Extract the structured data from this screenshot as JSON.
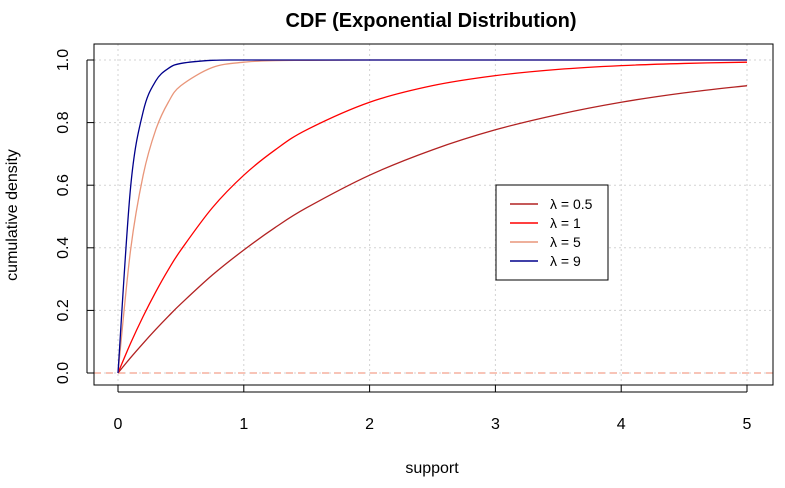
{
  "chart_data": {
    "type": "line",
    "title": "CDF (Exponential Distribution)",
    "xlabel": "support",
    "ylabel": "cumulative density",
    "xlim": [
      0,
      5
    ],
    "ylim": [
      0,
      1
    ],
    "x_ticks": [
      "0",
      "1",
      "2",
      "3",
      "4",
      "5"
    ],
    "y_ticks": [
      "0.0",
      "0.2",
      "0.4",
      "0.6",
      "0.8",
      "1.0"
    ],
    "grid": true,
    "legend_position": "center-right",
    "x": [
      0,
      0.1,
      0.2,
      0.3,
      0.4,
      0.5,
      0.75,
      1,
      1.25,
      1.5,
      2,
      2.5,
      3,
      3.5,
      4,
      4.5,
      5
    ],
    "series": [
      {
        "name": "λ = 0.5",
        "color": "#b22222",
        "values": [
          0,
          0.049,
          0.095,
          0.139,
          0.181,
          0.221,
          0.313,
          0.393,
          0.465,
          0.528,
          0.632,
          0.713,
          0.777,
          0.826,
          0.865,
          0.895,
          0.918
        ]
      },
      {
        "name": "λ = 1",
        "color": "#ff0000",
        "values": [
          0,
          0.095,
          0.181,
          0.259,
          0.33,
          0.393,
          0.528,
          0.632,
          0.713,
          0.777,
          0.865,
          0.918,
          0.95,
          0.97,
          0.982,
          0.989,
          0.993
        ]
      },
      {
        "name": "λ = 5",
        "color": "#e9967a",
        "values": [
          0,
          0.393,
          0.632,
          0.777,
          0.865,
          0.918,
          0.976,
          0.993,
          0.998,
          0.999,
          1,
          1,
          1,
          1,
          1,
          1,
          1
        ]
      },
      {
        "name": "λ = 9",
        "color": "#00008b",
        "values": [
          0,
          0.593,
          0.835,
          0.933,
          0.973,
          0.989,
          0.999,
          1,
          1,
          1,
          1,
          1,
          1,
          1,
          1,
          1,
          1
        ]
      }
    ],
    "reference_line": {
      "y": 0,
      "color": "#f4a08c",
      "style": "dashed"
    }
  }
}
